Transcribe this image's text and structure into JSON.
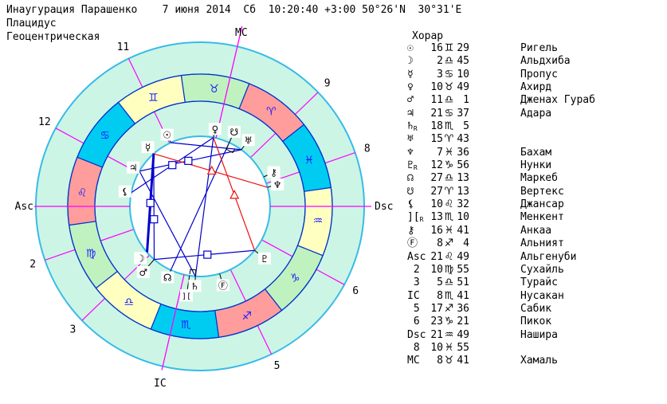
{
  "header": {
    "line1": "Инаугурация Парашенко    7 июня 2014  Сб  10:20:40 +3:00 50°26'N  30°31'E",
    "line2": "Плацидус",
    "line3": "Геоцентрическая"
  },
  "table": {
    "header": "Хорар",
    "retro_mark": "R",
    "rows": [
      {
        "label": "☉",
        "retro": false,
        "deg": "16",
        "sign": "♊",
        "min": "29",
        "star": "Ригель"
      },
      {
        "label": "☽",
        "retro": false,
        "deg": "2",
        "sign": "♎",
        "min": "45",
        "star": "Альдхиба"
      },
      {
        "label": "☿",
        "retro": false,
        "deg": "3",
        "sign": "♋",
        "min": "10",
        "star": "Пропус"
      },
      {
        "label": "♀",
        "retro": false,
        "deg": "10",
        "sign": "♉",
        "min": "49",
        "star": "Ахирд"
      },
      {
        "label": "♂",
        "retro": false,
        "deg": "11",
        "sign": "♎",
        "min": "1",
        "star": "Дженах Гураб"
      },
      {
        "label": "♃",
        "retro": false,
        "deg": "21",
        "sign": "♋",
        "min": "37",
        "star": "Адара"
      },
      {
        "label": "♄",
        "retro": true,
        "deg": "18",
        "sign": "♏",
        "min": "5",
        "star": ""
      },
      {
        "label": "♅",
        "retro": false,
        "deg": "15",
        "sign": "♈",
        "min": "43",
        "star": ""
      },
      {
        "label": "♆",
        "retro": false,
        "deg": "7",
        "sign": "♓",
        "min": "36",
        "star": "Бахам"
      },
      {
        "label": "♇",
        "retro": true,
        "deg": "12",
        "sign": "♑",
        "min": "56",
        "star": "Нунки"
      },
      {
        "label": "☊",
        "retro": false,
        "deg": "27",
        "sign": "♎",
        "min": "13",
        "star": "Маркеб"
      },
      {
        "label": "☋",
        "retro": false,
        "deg": "27",
        "sign": "♈",
        "min": "13",
        "star": "Вертекс"
      },
      {
        "label": "⚸",
        "retro": false,
        "deg": "10",
        "sign": "♌",
        "min": "32",
        "star": "Джансар"
      },
      {
        "label": "][",
        "retro": true,
        "deg": "13",
        "sign": "♏",
        "min": "10",
        "star": "Менкент"
      },
      {
        "label": "⚷",
        "retro": false,
        "deg": "16",
        "sign": "♓",
        "min": "41",
        "star": "Анкаа"
      },
      {
        "label": "Ⓕ",
        "retro": false,
        "deg": "8",
        "sign": "♐",
        "min": "4",
        "star": "Альният"
      },
      {
        "label": "Asc",
        "retro": false,
        "deg": "21",
        "sign": "♌",
        "min": "49",
        "star": "Альгенуби"
      },
      {
        "label": " 2",
        "retro": false,
        "deg": "10",
        "sign": "♍",
        "min": "55",
        "star": "Сухайль"
      },
      {
        "label": " 3",
        "retro": false,
        "deg": "5",
        "sign": "♎",
        "min": "51",
        "star": "Турайс"
      },
      {
        "label": "IC",
        "retro": false,
        "deg": "8",
        "sign": "♏",
        "min": "41",
        "star": "Нусакан"
      },
      {
        "label": " 5",
        "retro": false,
        "deg": "17",
        "sign": "♐",
        "min": "36",
        "star": "Сабик"
      },
      {
        "label": " 6",
        "retro": false,
        "deg": "23",
        "sign": "♑",
        "min": "21",
        "star": "Пикок"
      },
      {
        "label": "Dsc",
        "retro": false,
        "deg": "21",
        "sign": "♒",
        "min": "49",
        "star": "Нашира"
      },
      {
        "label": " 8",
        "retro": false,
        "deg": "10",
        "sign": "♓",
        "min": "55",
        "star": ""
      },
      {
        "label": "MC",
        "retro": false,
        "deg": "8",
        "sign": "♉",
        "min": "41",
        "star": "Хамаль"
      }
    ]
  },
  "chart_data": {
    "type": "astro_wheel",
    "title": "Инаугурация Парашенко",
    "house_system": "Плацидус",
    "asc_lon": 141.817,
    "axis_labels": {
      "asc": "Asc",
      "dsc": "Dsc",
      "mc": "MC",
      "ic": "IC"
    },
    "colors": {
      "fire": "#ff9d9d",
      "earth": "#c0f2c0",
      "air": "#ffffc0",
      "water": "#00ccf2",
      "ring_bg": "#ccf5e5",
      "ring_line": "#0033cc",
      "circle_line": "#38bbe8",
      "cusp_line": "#ff00ff",
      "aspect_blue": "#0000cc",
      "aspect_red": "#ee1111",
      "sign_glyph": "#1a1aff"
    },
    "signs": [
      {
        "name": "aries",
        "glyph": "♈",
        "element": "fire"
      },
      {
        "name": "taurus",
        "glyph": "♉",
        "element": "earth"
      },
      {
        "name": "gemini",
        "glyph": "♊",
        "element": "air"
      },
      {
        "name": "cancer",
        "glyph": "♋",
        "element": "water"
      },
      {
        "name": "leo",
        "glyph": "♌",
        "element": "fire"
      },
      {
        "name": "virgo",
        "glyph": "♍",
        "element": "earth"
      },
      {
        "name": "libra",
        "glyph": "♎",
        "element": "air"
      },
      {
        "name": "scorpio",
        "glyph": "♏",
        "element": "water"
      },
      {
        "name": "sagittarius",
        "glyph": "♐",
        "element": "fire"
      },
      {
        "name": "capricorn",
        "glyph": "♑",
        "element": "earth"
      },
      {
        "name": "aquarius",
        "glyph": "♒",
        "element": "air"
      },
      {
        "name": "pisces",
        "glyph": "♓",
        "element": "water"
      }
    ],
    "houses": [
      {
        "lon": 141.817,
        "label": "Asc",
        "axis": "asc"
      },
      {
        "lon": 160.917,
        "label": "2"
      },
      {
        "lon": 185.85,
        "label": "3"
      },
      {
        "lon": 218.683,
        "label": "IC",
        "axis": "ic"
      },
      {
        "lon": 257.6,
        "label": "5"
      },
      {
        "lon": 293.35,
        "label": "6"
      },
      {
        "lon": 321.817,
        "label": "Dsc",
        "axis": "dsc"
      },
      {
        "lon": 340.917,
        "label": "8"
      },
      {
        "lon": 5.85,
        "label": "9"
      },
      {
        "lon": 38.683,
        "label": "MC",
        "axis": "mc"
      },
      {
        "lon": 77.6,
        "label": "11"
      },
      {
        "lon": 113.35,
        "label": "12"
      }
    ],
    "planets": [
      {
        "name": "sun",
        "glyph": "☉",
        "lon": 76.483,
        "r": 99,
        "position": "16♊29"
      },
      {
        "name": "moon",
        "glyph": "☽",
        "lon": 182.75,
        "r": 99,
        "position": "2♎45"
      },
      {
        "name": "mercury",
        "glyph": "☿",
        "lon": 93.167,
        "r": 99,
        "position": "3♋10"
      },
      {
        "name": "venus",
        "glyph": "♀",
        "lon": 40.817,
        "r": 99,
        "position": "10♉49"
      },
      {
        "name": "mars",
        "glyph": "♂",
        "lon": 191.017,
        "r": 109,
        "position": "11♎1"
      },
      {
        "name": "jupiter",
        "glyph": "♃",
        "lon": 111.617,
        "r": 97,
        "position": "21♋37"
      },
      {
        "name": "saturn",
        "glyph": "♄",
        "lon": 228.083,
        "r": 100,
        "retro": true,
        "position": "18♏5"
      },
      {
        "name": "uranus",
        "glyph": "♅",
        "lon": 15.717,
        "r": 103,
        "position": "15♈43"
      },
      {
        "name": "neptune",
        "glyph": "♆",
        "lon": 337.6,
        "r": 101,
        "position": "7♓36"
      },
      {
        "name": "pluto",
        "glyph": "♇",
        "lon": 282.933,
        "r": 104,
        "retro": true,
        "position": "12♑56"
      },
      {
        "name": "node",
        "glyph": "☊",
        "lon": 207.217,
        "r": 98,
        "position": "27♎13"
      },
      {
        "name": "snode",
        "glyph": "☋",
        "lon": 27.217,
        "r": 103,
        "position": "27♈13"
      },
      {
        "name": "lilith",
        "glyph": "⚸",
        "lon": 130.533,
        "r": 96,
        "position": "10♌32"
      },
      {
        "name": "proserpina",
        "glyph": "][",
        "lon": 223.167,
        "r": 113,
        "retro": true,
        "position": "13♏10"
      },
      {
        "name": "chiron",
        "glyph": "⚷",
        "lon": 346.683,
        "r": 102,
        "position": "16♓41"
      },
      {
        "name": "fortune",
        "glyph": "Ⓕ",
        "lon": 248.067,
        "r": 103,
        "position": "8♐4"
      }
    ],
    "aspects": [
      {
        "a": "mercury",
        "b": "moon",
        "color": "blue",
        "width": 3,
        "marker": "square",
        "t": 0.5
      },
      {
        "a": "mercury",
        "b": "mars",
        "color": "blue",
        "width": 1.2,
        "marker": "square",
        "t": 0.62
      },
      {
        "a": "mars",
        "b": "pluto",
        "color": "blue",
        "width": 1.2,
        "marker": "square",
        "t": 0.53
      },
      {
        "a": "jupiter",
        "b": "uranus",
        "color": "blue",
        "width": 1.2,
        "marker": "square",
        "t": 0.48
      },
      {
        "a": "venus",
        "b": "lilith",
        "color": "blue",
        "width": 1.2,
        "marker": "square",
        "t": 0.5
      },
      {
        "a": "venus",
        "b": "saturn",
        "color": "blue",
        "width": 1.2
      },
      {
        "a": "sun",
        "b": "uranus",
        "color": "blue",
        "width": 1.2
      },
      {
        "a": "node",
        "b": "snode",
        "color": "blue",
        "width": 1.2
      },
      {
        "a": "jupiter",
        "b": "saturn",
        "color": "blue",
        "width": 1.2
      },
      {
        "a": "venus",
        "b": "pluto",
        "color": "red",
        "width": 1.2,
        "marker": "triangle",
        "t": 0.51
      },
      {
        "a": "mercury",
        "b": "neptune",
        "color": "red",
        "width": 1.2,
        "marker": "triangle",
        "t": 0.51
      }
    ],
    "conjunction_brackets": [
      {
        "from": 223.167,
        "to": 228.083,
        "r1": 86,
        "r2": 80
      },
      {
        "from": 20.5,
        "to": 27.217,
        "r1": 85,
        "r2": 79
      }
    ]
  }
}
